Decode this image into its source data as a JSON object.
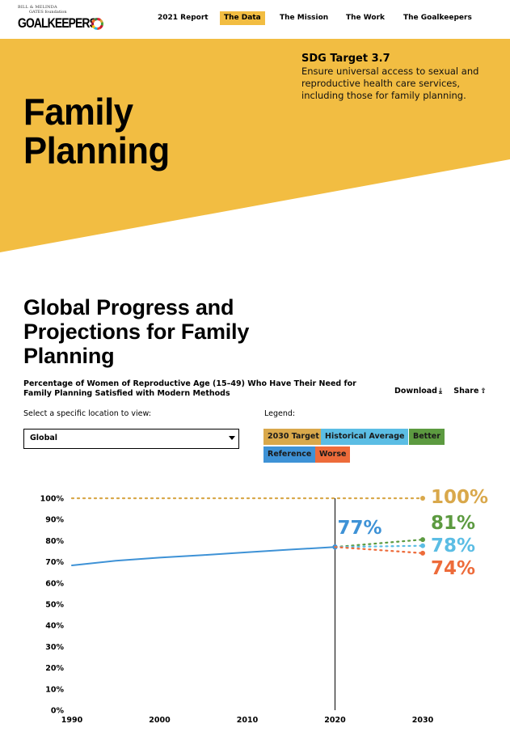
{
  "header": {
    "logo": {
      "line1": "BILL & MELINDA",
      "line2": "GATES foundation",
      "wordmark": "GOALKEEPERS"
    },
    "nav": [
      {
        "label": "2021 Report",
        "active": false
      },
      {
        "label": "The Data",
        "active": true
      },
      {
        "label": "The Mission",
        "active": false
      },
      {
        "label": "The Work",
        "active": false
      },
      {
        "label": "The Goalkeepers",
        "active": false
      }
    ]
  },
  "hero": {
    "title_line1": "Family",
    "title_line2": "Planning",
    "sdg_title": "SDG Target 3.7",
    "sdg_text": "Ensure universal access to sexual and reproductive health care services, including those for family planning.",
    "color": "#f2bd42"
  },
  "section": {
    "title": "Global Progress and Projections for Family Planning",
    "subtitle": "Percentage of Women of Reproductive Age (15–49) Who Have Their Need for Family Planning Satisfied with Modern Methods",
    "download_label": "Download",
    "download_icon": "download-icon",
    "share_label": "Share",
    "share_icon": "share-icon",
    "location_label": "Select a specific location to view:",
    "location_value": "Global",
    "legend_label": "Legend:",
    "legend": [
      {
        "label": "2030 Target",
        "color": "#d9a84b"
      },
      {
        "label": "Historical Average",
        "color": "#5bbde4"
      },
      {
        "label": "Better",
        "color": "#5c9a40"
      },
      {
        "label": "Reference",
        "color": "#3e92d6"
      },
      {
        "label": "Worse",
        "color": "#ed6b3a"
      }
    ]
  },
  "chart_data": {
    "type": "line",
    "title": "Percentage of Women of Reproductive Age (15–49) Who Have Their Need for Family Planning Satisfied with Modern Methods",
    "xlabel": "",
    "ylabel": "",
    "xlim": [
      1990,
      2030
    ],
    "ylim": [
      0,
      100
    ],
    "x_ticks": [
      "1990",
      "2000",
      "2010",
      "2020",
      "2030"
    ],
    "y_ticks": [
      "0%",
      "10%",
      "20%",
      "30%",
      "40%",
      "50%",
      "60%",
      "70%",
      "80%",
      "90%",
      "100%"
    ],
    "grid": false,
    "current_year": 2020,
    "current_value_label": "77%",
    "series": [
      {
        "name": "Reference (historical)",
        "color": "#3e92d6",
        "style": "solid",
        "x": [
          1990,
          1995,
          2000,
          2005,
          2010,
          2015,
          2020
        ],
        "y": [
          68.3,
          70.5,
          72.0,
          73.2,
          74.5,
          75.8,
          77.0
        ]
      },
      {
        "name": "2030 Target",
        "color": "#d9a84b",
        "style": "dotted",
        "x": [
          1990,
          2030
        ],
        "y": [
          100,
          100
        ],
        "end_label": "100%"
      },
      {
        "name": "Better",
        "color": "#5c9a40",
        "style": "dotted",
        "x": [
          2020,
          2030
        ],
        "y": [
          77,
          80.5
        ],
        "end_label": "81%"
      },
      {
        "name": "Historical Average",
        "color": "#5bbde4",
        "style": "dotted",
        "x": [
          2020,
          2030
        ],
        "y": [
          77,
          77.6
        ],
        "end_label": "78%"
      },
      {
        "name": "Worse",
        "color": "#ed6b3a",
        "style": "dotted",
        "x": [
          2020,
          2030
        ],
        "y": [
          77,
          74.1
        ],
        "end_label": "74%"
      }
    ]
  }
}
